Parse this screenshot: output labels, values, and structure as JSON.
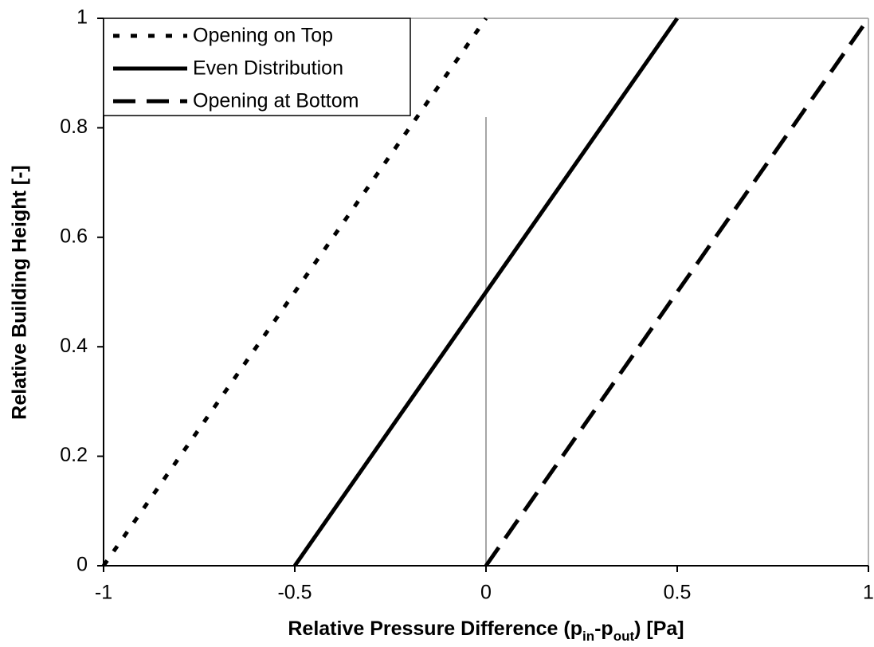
{
  "chart_data": {
    "type": "line",
    "xlabel": [
      {
        "text": "Relative Pressure Difference (p"
      },
      {
        "text": "in",
        "sub": true
      },
      {
        "text": "-p"
      },
      {
        "text": "out",
        "sub": true
      },
      {
        "text": ") [Pa]"
      }
    ],
    "ylabel": "Relative Building Height [-]",
    "xlim": [
      -1,
      1
    ],
    "ylim": [
      0,
      1
    ],
    "xticks": [
      -1,
      -0.5,
      0,
      0.5,
      1
    ],
    "yticks": [
      0,
      0.2,
      0.4,
      0.6,
      0.8,
      1
    ],
    "legend": "upper left",
    "series": [
      {
        "name": "Opening on Top",
        "color": "#000000",
        "style": "dotted",
        "x": [
          -1,
          0
        ],
        "values": [
          0,
          1
        ]
      },
      {
        "name": "Even Distribution",
        "color": "#000000",
        "style": "solid",
        "x": [
          -0.5,
          0.5
        ],
        "values": [
          0,
          1
        ]
      },
      {
        "name": "Opening at Bottom",
        "color": "#000000",
        "style": "dashed",
        "x": [
          0,
          1
        ],
        "values": [
          0,
          1
        ]
      }
    ]
  }
}
